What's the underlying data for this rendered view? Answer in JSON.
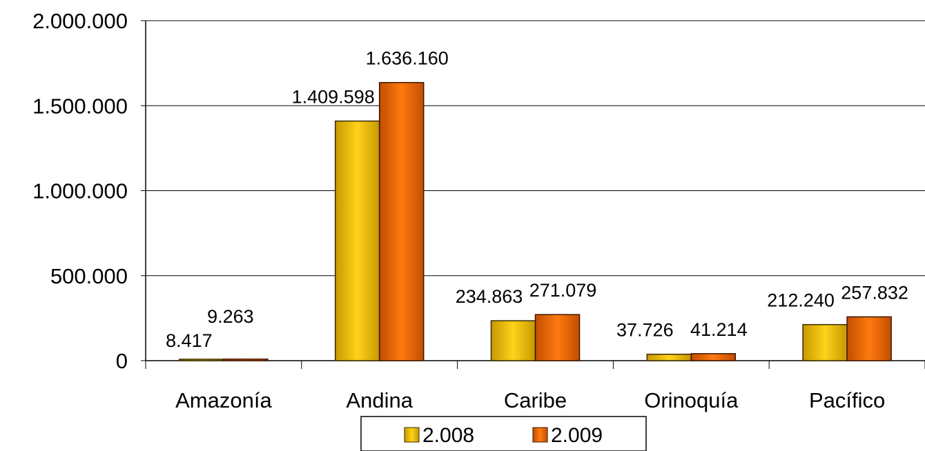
{
  "chart_data": {
    "type": "bar",
    "categories": [
      "Amazonía",
      "Andina",
      "Caribe",
      "Orinoquía",
      "Pacífico"
    ],
    "series": [
      {
        "name": "2.008",
        "values": [
          8417,
          1409598,
          234863,
          37726,
          212240
        ],
        "labels": [
          "8.417",
          "1.409.598",
          "234.863",
          "37.726",
          "212.240"
        ],
        "color": "#f5c400"
      },
      {
        "name": "2.009",
        "values": [
          9263,
          1636160,
          271079,
          41214,
          257832
        ],
        "labels": [
          "9.263",
          "1.636.160",
          "271.079",
          "41.214",
          "257.832"
        ],
        "color": "#f06a00"
      }
    ],
    "y_ticks": [
      0,
      500000,
      1000000,
      1500000,
      2000000
    ],
    "y_tick_labels": [
      "0",
      "500.000",
      "1.000.000",
      "1.500.000",
      "2.000.000"
    ],
    "ylim": [
      0,
      2000000
    ],
    "grid": true,
    "legend": "bottom-center"
  }
}
